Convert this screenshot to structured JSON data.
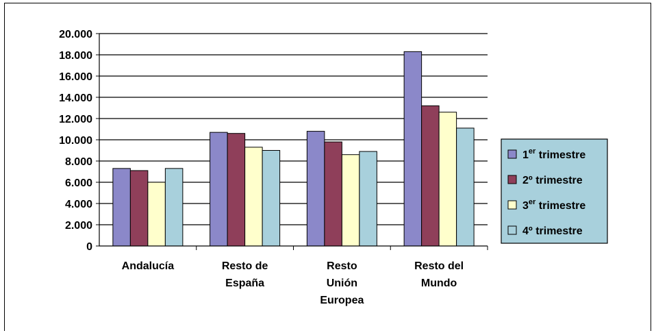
{
  "chart_data": {
    "type": "bar",
    "categories": [
      [
        "Andalucía"
      ],
      [
        "Resto de",
        "España"
      ],
      [
        "Resto",
        "Unión",
        "Europea"
      ],
      [
        "Resto del",
        "Mundo"
      ]
    ],
    "series": [
      {
        "name_main": "1",
        "name_sup": "er",
        "name_rest": " trimestre",
        "color": "#8b88c9",
        "values": [
          7300,
          10700,
          10800,
          18300
        ]
      },
      {
        "name_main": "2º",
        "name_sup": "",
        "name_rest": " trimestre",
        "color": "#8f3f5a",
        "values": [
          7100,
          10600,
          9800,
          13200
        ]
      },
      {
        "name_main": "3",
        "name_sup": "er",
        "name_rest": " trimestre",
        "color": "#ffffcc",
        "values": [
          6000,
          9300,
          8600,
          12600
        ]
      },
      {
        "name_main": "4º",
        "name_sup": "",
        "name_rest": " trimestre",
        "color": "#a8d0dc",
        "values": [
          7300,
          9000,
          8900,
          11100
        ]
      }
    ],
    "y_ticks": [
      "0",
      "2.000",
      "4.000",
      "6.000",
      "8.000",
      "10.000",
      "12.000",
      "14.000",
      "16.000",
      "18.000",
      "20.000"
    ],
    "ylim": [
      0,
      20000
    ],
    "grid": true,
    "legend_position": "right",
    "legend_bg": "#a8d0dc",
    "title": "",
    "xlabel": "",
    "ylabel": ""
  }
}
